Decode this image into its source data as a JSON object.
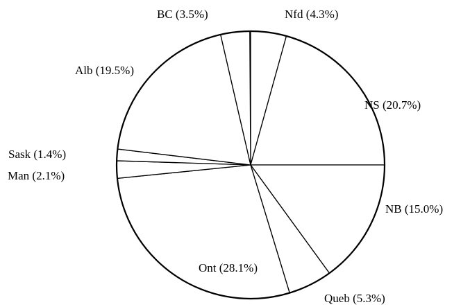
{
  "chart_data": {
    "type": "pie",
    "categories": [
      "Nfd (4.3%)",
      "NS (20.7%)",
      "NB (15.0%)",
      "Queb (5.3%)",
      "Ont (28.1%)",
      "Man (2.1%)",
      "Sask (1.4%)",
      "Alb (19.5%)",
      "BC (3.5%)"
    ],
    "values": [
      4.3,
      20.7,
      15.0,
      5.3,
      28.1,
      2.1,
      1.4,
      19.5,
      3.5
    ],
    "color": "#ffffff"
  }
}
